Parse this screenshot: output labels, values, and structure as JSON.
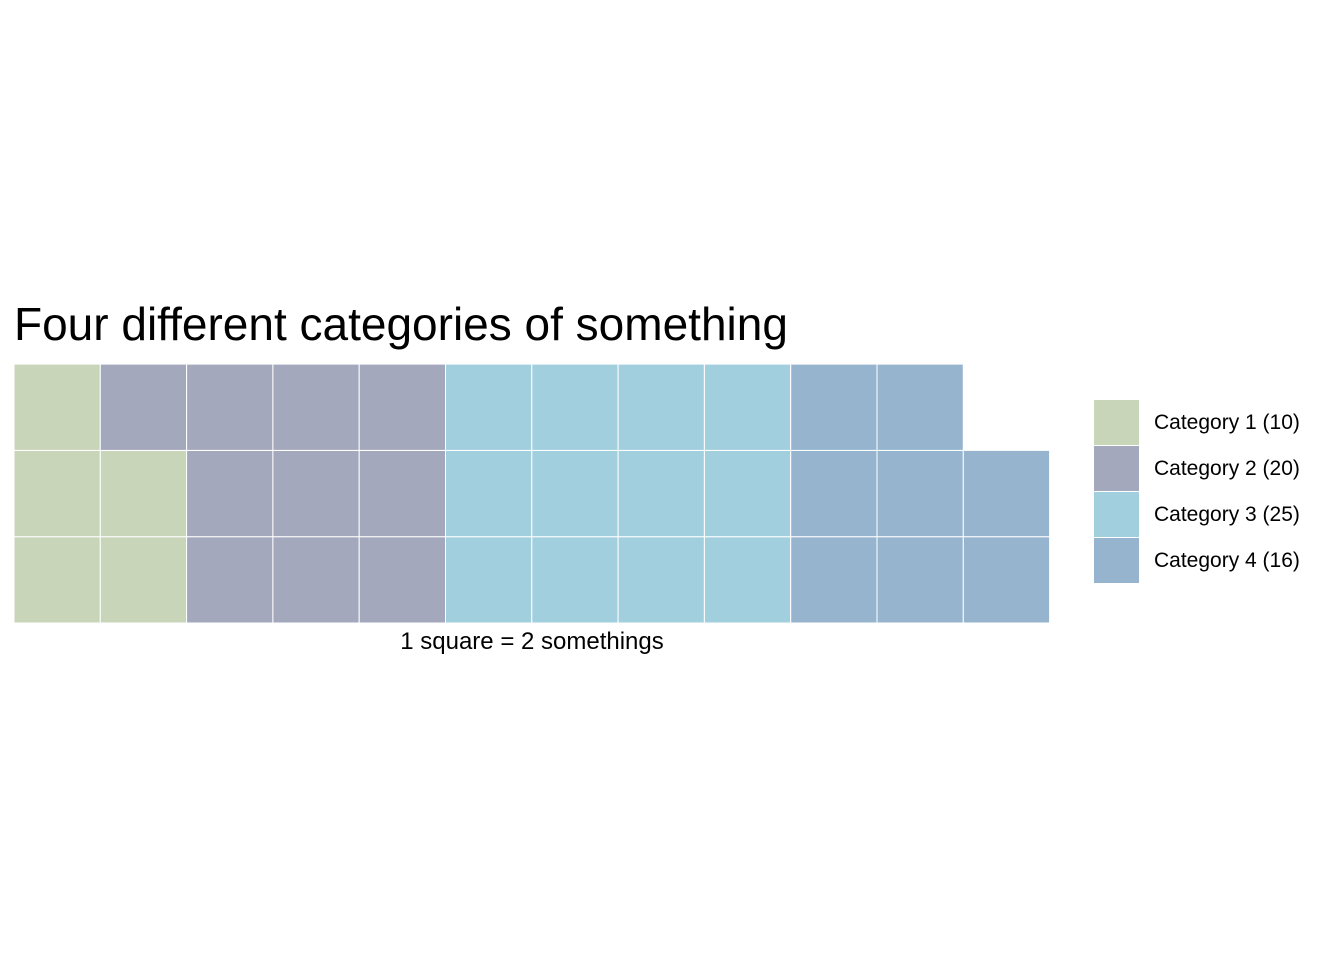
{
  "chart_data": {
    "type": "waffle",
    "title": "Four different categories of something",
    "caption": "1 square = 2 somethings",
    "rows": 3,
    "units_per_square": 2,
    "legend_position": "right",
    "series": [
      {
        "name": "Category 1 (10)",
        "value": 10,
        "squares": 5,
        "color": "#c8d5b9"
      },
      {
        "name": "Category 2 (20)",
        "value": 20,
        "squares": 10,
        "color": "#a3a8bc"
      },
      {
        "name": "Category 3 (25)",
        "value": 25,
        "squares": 12,
        "color": "#a2cfdd"
      },
      {
        "name": "Category 4 (16)",
        "value": 16,
        "squares": 8,
        "color": "#97b4cf"
      }
    ]
  }
}
